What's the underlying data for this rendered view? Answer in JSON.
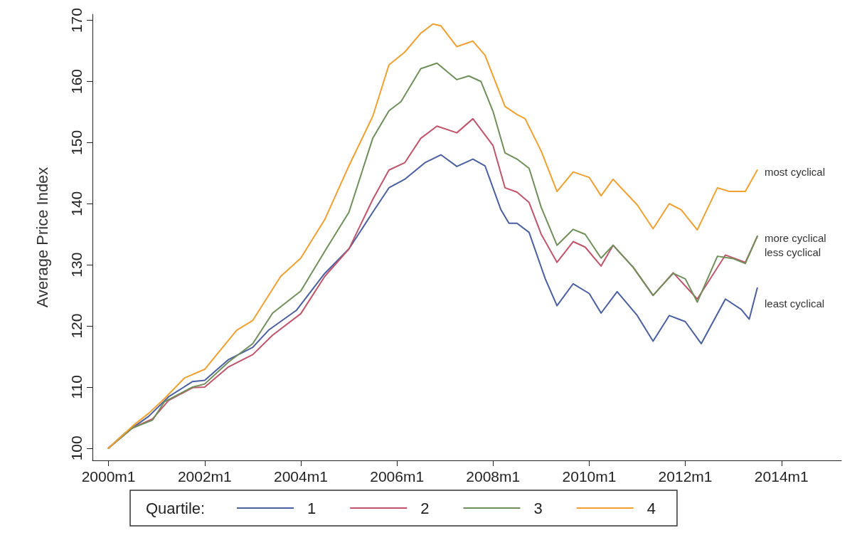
{
  "chart_data": {
    "type": "line",
    "ylabel": "Average Price Index",
    "legend_title": "Quartile:",
    "legend": "bottom",
    "grid": false,
    "marker": "none",
    "line_style": "solid",
    "xlim": [
      "1999-09",
      "2015-04"
    ],
    "ylim": [
      98,
      171
    ],
    "xticks": [
      {
        "value": "2000-01",
        "label": "2000m1"
      },
      {
        "value": "2002-01",
        "label": "2002m1"
      },
      {
        "value": "2004-01",
        "label": "2004m1"
      },
      {
        "value": "2006-01",
        "label": "2006m1"
      },
      {
        "value": "2008-01",
        "label": "2008m1"
      },
      {
        "value": "2010-01",
        "label": "2010m1"
      },
      {
        "value": "2012-01",
        "label": "2012m1"
      },
      {
        "value": "2014-01",
        "label": "2014m1"
      }
    ],
    "yticks": [
      100,
      110,
      120,
      130,
      140,
      150,
      160,
      170
    ],
    "series": [
      {
        "name": "1",
        "color": "#4a5fa0",
        "x": [
          "2000-01",
          "2000-05",
          "2000-11",
          "2001-04",
          "2001-10",
          "2002-01",
          "2002-07",
          "2003-01",
          "2003-05",
          "2003-12",
          "2004-07",
          "2005-01",
          "2005-07",
          "2005-11",
          "2006-03",
          "2006-08",
          "2006-12",
          "2007-04",
          "2007-08",
          "2007-11",
          "2008-03",
          "2008-05",
          "2008-07",
          "2008-10",
          "2009-02",
          "2009-05",
          "2009-09",
          "2010-01",
          "2010-04",
          "2010-08",
          "2011-01",
          "2011-05",
          "2011-09",
          "2012-01",
          "2012-05",
          "2012-11",
          "2013-03",
          "2013-05",
          "2013-07"
        ],
        "values": [
          100,
          102.4,
          105.2,
          108.4,
          110.9,
          111.1,
          114.5,
          116.5,
          119.3,
          122.6,
          128.6,
          132.6,
          138.6,
          142.6,
          144,
          146.7,
          148,
          146.1,
          147.3,
          146.2,
          139,
          136.8,
          136.8,
          135.3,
          127.7,
          123.3,
          126.9,
          125.3,
          122.1,
          125.6,
          121.7,
          117.5,
          121.7,
          120.7,
          117.1,
          124.4,
          122.7,
          121.1,
          126.2
        ]
      },
      {
        "name": "2",
        "color": "#c0546a",
        "x": [
          "2000-01",
          "2000-07",
          "2000-12",
          "2001-04",
          "2001-10",
          "2002-01",
          "2002-07",
          "2003-01",
          "2003-06",
          "2004-01",
          "2004-07",
          "2005-01",
          "2005-07",
          "2005-11",
          "2006-03",
          "2006-07",
          "2006-11",
          "2007-04",
          "2007-08",
          "2008-01",
          "2008-04",
          "2008-07",
          "2008-10",
          "2009-01",
          "2009-05",
          "2009-09",
          "2009-12",
          "2010-04",
          "2010-07",
          "2010-12",
          "2011-05",
          "2011-10",
          "2012-04",
          "2012-11",
          "2013-04",
          "2013-07"
        ],
        "values": [
          100,
          103.3,
          104.8,
          107.8,
          109.9,
          110,
          113.3,
          115.3,
          118.5,
          122,
          128.1,
          132.6,
          140.7,
          145.5,
          146.7,
          150.7,
          152.7,
          151.6,
          153.9,
          149.5,
          142.6,
          141.9,
          140.2,
          135,
          130.4,
          133.8,
          132.9,
          129.8,
          133.2,
          129.6,
          125,
          128.7,
          124.4,
          131.6,
          130.4,
          134.6
        ]
      },
      {
        "name": "3",
        "color": "#6f8f5a",
        "x": [
          "2000-01",
          "2000-07",
          "2000-12",
          "2001-03",
          "2001-10",
          "2002-01",
          "2002-07",
          "2003-01",
          "2003-06",
          "2004-01",
          "2004-07",
          "2005-01",
          "2005-07",
          "2005-11",
          "2006-02",
          "2006-07",
          "2006-11",
          "2007-04",
          "2007-07",
          "2007-10",
          "2008-01",
          "2008-04",
          "2008-07",
          "2008-10",
          "2009-01",
          "2009-05",
          "2009-09",
          "2009-12",
          "2010-04",
          "2010-07",
          "2010-12",
          "2011-05",
          "2011-10",
          "2012-01",
          "2012-04",
          "2012-09",
          "2013-01",
          "2013-04",
          "2013-07"
        ],
        "values": [
          100,
          103.3,
          104.6,
          107.6,
          110,
          110.5,
          114.1,
          117.1,
          122.1,
          125.7,
          132.2,
          138.6,
          150.7,
          155.2,
          156.7,
          162.1,
          163,
          160.3,
          160.9,
          160,
          155.1,
          148.3,
          147.3,
          145.8,
          139.4,
          133.2,
          135.8,
          135,
          131.1,
          133.2,
          129.6,
          125,
          128.6,
          127.7,
          123.9,
          131.4,
          131,
          130.2,
          134.7
        ]
      },
      {
        "name": "4",
        "color": "#f0a030",
        "x": [
          "2000-01",
          "2000-07",
          "2000-11",
          "2001-03",
          "2001-08",
          "2002-01",
          "2002-09",
          "2003-01",
          "2003-08",
          "2004-01",
          "2004-07",
          "2005-01",
          "2005-07",
          "2005-11",
          "2006-03",
          "2006-07",
          "2006-10",
          "2006-12",
          "2007-04",
          "2007-08",
          "2007-11",
          "2008-04",
          "2008-07",
          "2008-09",
          "2009-01",
          "2009-05",
          "2009-09",
          "2010-01",
          "2010-04",
          "2010-07",
          "2010-10",
          "2011-01",
          "2011-05",
          "2011-09",
          "2011-12",
          "2012-04",
          "2012-09",
          "2012-12",
          "2013-04",
          "2013-07"
        ],
        "values": [
          100,
          103.6,
          105.7,
          108.1,
          111.5,
          112.9,
          119.3,
          120.9,
          128.1,
          131.1,
          137.4,
          146.2,
          154.3,
          162.7,
          164.8,
          167.9,
          169.4,
          169.1,
          165.7,
          166.6,
          164.3,
          155.9,
          154.6,
          153.9,
          148.6,
          142,
          145.2,
          144.3,
          141.3,
          144,
          141.9,
          139.8,
          135.9,
          140,
          139,
          135.7,
          142.6,
          142,
          142,
          145.5
        ]
      }
    ],
    "annotations": [
      "most cyclical",
      "more cyclical",
      "less cyclical",
      "least cyclical"
    ]
  }
}
